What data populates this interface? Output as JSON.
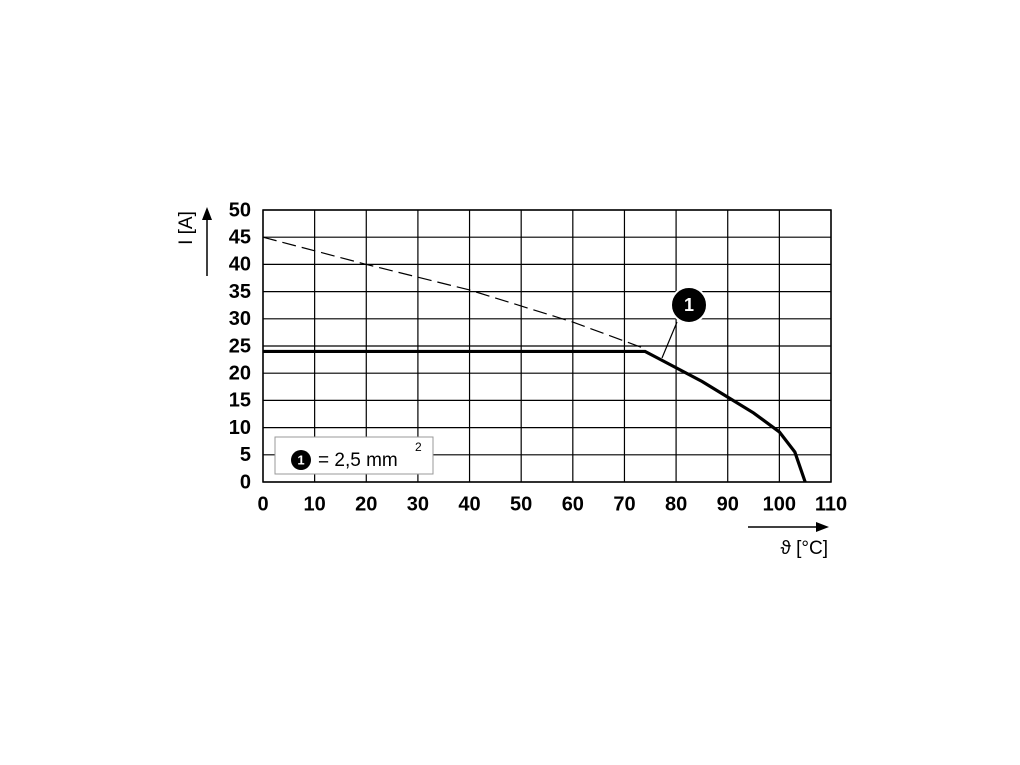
{
  "chart_data": {
    "type": "line",
    "xlabel": "ϑ [°C]",
    "ylabel": "I [A]",
    "series": [
      {
        "x": [
          0,
          74,
          76,
          80,
          85,
          90,
          95,
          100,
          103,
          105
        ],
        "values": [
          24,
          24,
          23,
          21,
          18.5,
          15.6,
          12.7,
          9.2,
          5.5,
          0
        ],
        "color": "#000000",
        "dashed": false
      },
      {
        "x": [
          0,
          20,
          40,
          60,
          74
        ],
        "values": [
          45,
          40,
          35.3,
          29.4,
          24.5
        ],
        "color": "#000000",
        "dashed": true
      }
    ],
    "xlim": [
      0,
      110
    ],
    "xticks": [
      0,
      10,
      20,
      30,
      40,
      50,
      60,
      70,
      80,
      90,
      100,
      110
    ],
    "ylim": [
      0,
      50
    ],
    "yticks": [
      0,
      5,
      10,
      15,
      20,
      25,
      30,
      35,
      40,
      45,
      50
    ],
    "grid": true,
    "annotation": "1",
    "legend": {
      "marker": "1",
      "text": "= 2,5 mm",
      "superscript": "2"
    }
  }
}
